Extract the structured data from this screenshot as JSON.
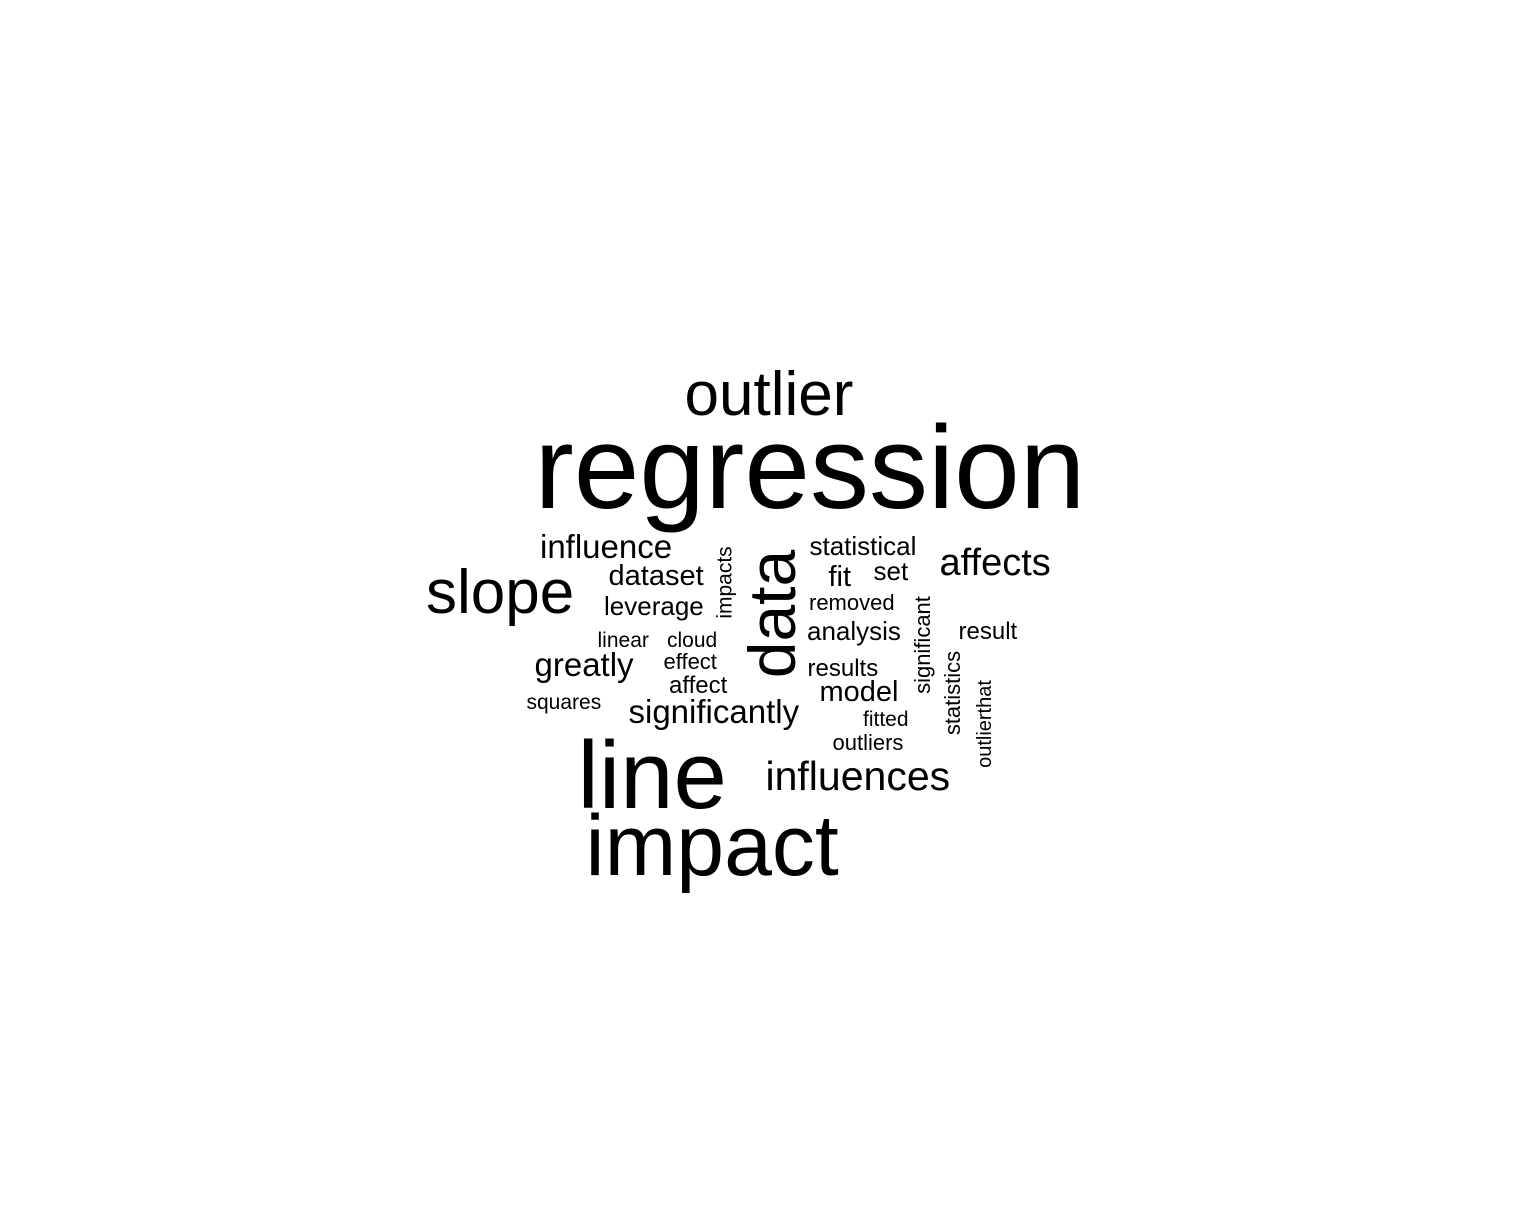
{
  "text_color": "#000000",
  "background": "#ffffff",
  "words": [
    {
      "key": "regression",
      "text": "regression",
      "vertical": false
    },
    {
      "key": "outlier",
      "text": "outlier",
      "vertical": false
    },
    {
      "key": "line",
      "text": "line",
      "vertical": false
    },
    {
      "key": "impact",
      "text": "impact",
      "vertical": false
    },
    {
      "key": "data",
      "text": "data",
      "vertical": true
    },
    {
      "key": "slope",
      "text": "slope",
      "vertical": false
    },
    {
      "key": "influences",
      "text": "influences",
      "vertical": false
    },
    {
      "key": "affects",
      "text": "affects",
      "vertical": false
    },
    {
      "key": "influence",
      "text": "influence",
      "vertical": false
    },
    {
      "key": "statistical",
      "text": "statistical",
      "vertical": false
    },
    {
      "key": "dataset",
      "text": "dataset",
      "vertical": false
    },
    {
      "key": "fit",
      "text": "fit",
      "vertical": false
    },
    {
      "key": "set",
      "text": "set",
      "vertical": false
    },
    {
      "key": "leverage",
      "text": "leverage",
      "vertical": false
    },
    {
      "key": "removed",
      "text": "removed",
      "vertical": false
    },
    {
      "key": "analysis",
      "text": "analysis",
      "vertical": false
    },
    {
      "key": "result",
      "text": "result",
      "vertical": false
    },
    {
      "key": "linear",
      "text": "linear",
      "vertical": false
    },
    {
      "key": "cloud",
      "text": "cloud",
      "vertical": false
    },
    {
      "key": "greatly",
      "text": "greatly",
      "vertical": false
    },
    {
      "key": "effect",
      "text": "effect",
      "vertical": false
    },
    {
      "key": "results",
      "text": "results",
      "vertical": false
    },
    {
      "key": "affect",
      "text": "affect",
      "vertical": false
    },
    {
      "key": "model",
      "text": "model",
      "vertical": false
    },
    {
      "key": "squares",
      "text": "squares",
      "vertical": false
    },
    {
      "key": "significantly",
      "text": "significantly",
      "vertical": false
    },
    {
      "key": "fitted",
      "text": "fitted",
      "vertical": false
    },
    {
      "key": "outliers",
      "text": "outliers",
      "vertical": false
    },
    {
      "key": "impacts",
      "text": "impacts",
      "vertical": true
    },
    {
      "key": "significant",
      "text": "significant",
      "vertical": true
    },
    {
      "key": "statistics",
      "text": "statistics",
      "vertical": true
    },
    {
      "key": "outlierthat",
      "text": "outlierthat",
      "vertical": true
    }
  ]
}
